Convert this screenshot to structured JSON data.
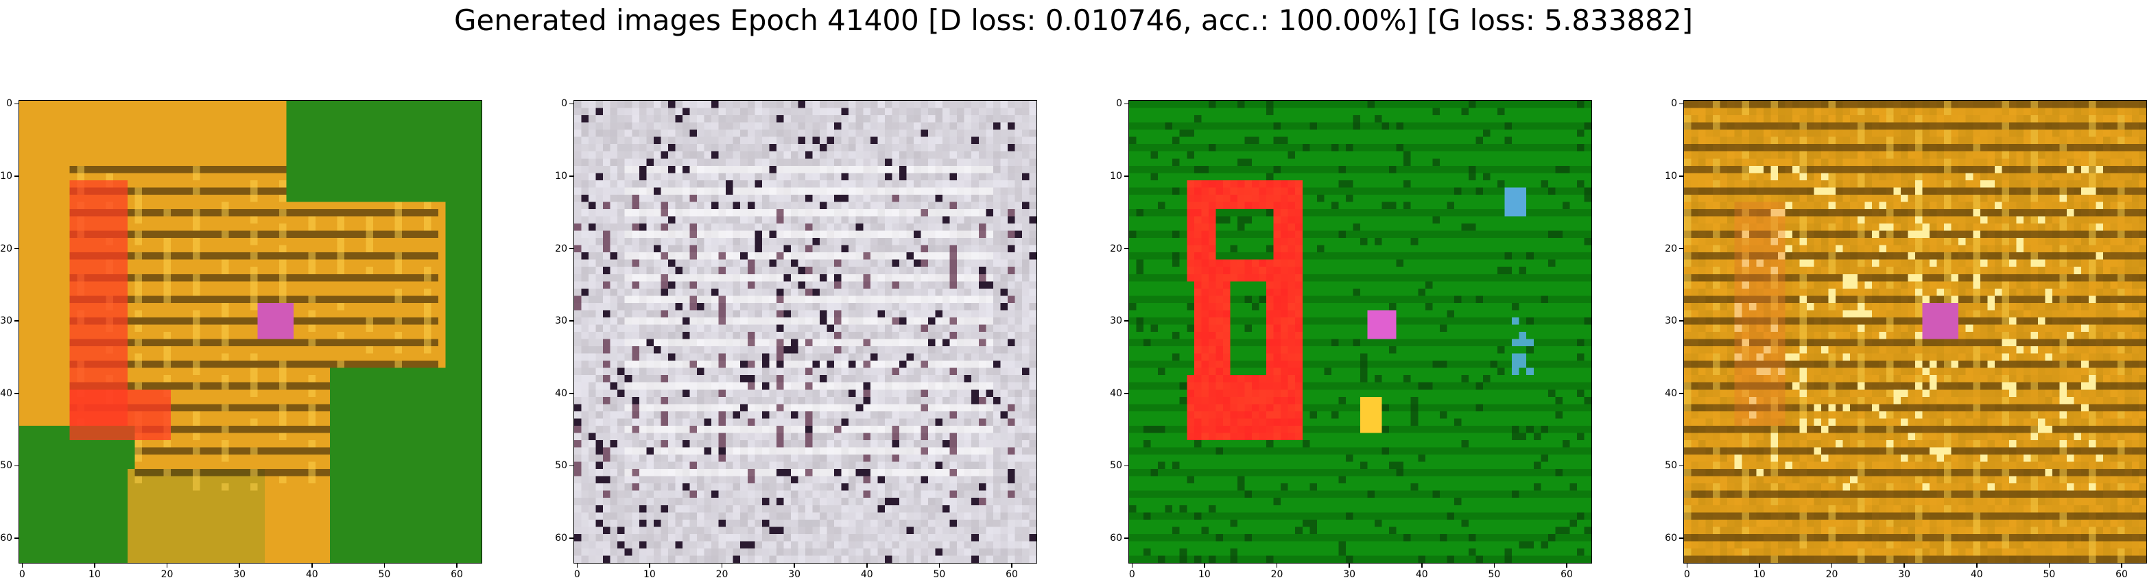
{
  "figure": {
    "title": "Generated images Epoch 41400 [D loss: 0.010746, acc.: 100.00%] [G loss: 5.833882]"
  },
  "axes": {
    "x_ticks": [
      "0",
      "10",
      "20",
      "30",
      "40",
      "50",
      "60"
    ],
    "y_ticks": [
      "0",
      "10",
      "20",
      "30",
      "40",
      "50",
      "60"
    ],
    "pixel_range": [
      0,
      63
    ]
  },
  "panels": [
    {
      "id": "sample-1",
      "theme": "orange-on-green",
      "colors": {
        "background": "#2a8a1a",
        "primary": "#e7a421",
        "accent": "#ff3a22",
        "dark": "#241805",
        "highlight": "#ffd34d",
        "spot": "#d05ab8"
      }
    },
    {
      "id": "sample-2",
      "theme": "grey-purple-noise",
      "colors": {
        "background": "#c8c4cc",
        "primary": "#e8e6ef",
        "accent": "#5b2a45",
        "dark": "#2a1a30",
        "highlight": "#ffffff",
        "spot": "#d05ab8"
      }
    },
    {
      "id": "sample-3",
      "theme": "red-shape-on-green",
      "colors": {
        "background": "#109010",
        "primary": "#0c7a0c",
        "accent": "#ff2a24",
        "dark": "#0a3a0a",
        "highlight": "#ffcc33",
        "spot": "#e060d0"
      }
    },
    {
      "id": "sample-4",
      "theme": "golden-grid",
      "colors": {
        "background": "#b8860f",
        "primary": "#e8a21c",
        "accent": "#ffd24a",
        "dark": "#2a1a05",
        "highlight": "#fff0a0",
        "spot": "#d05ab8"
      }
    }
  ]
}
